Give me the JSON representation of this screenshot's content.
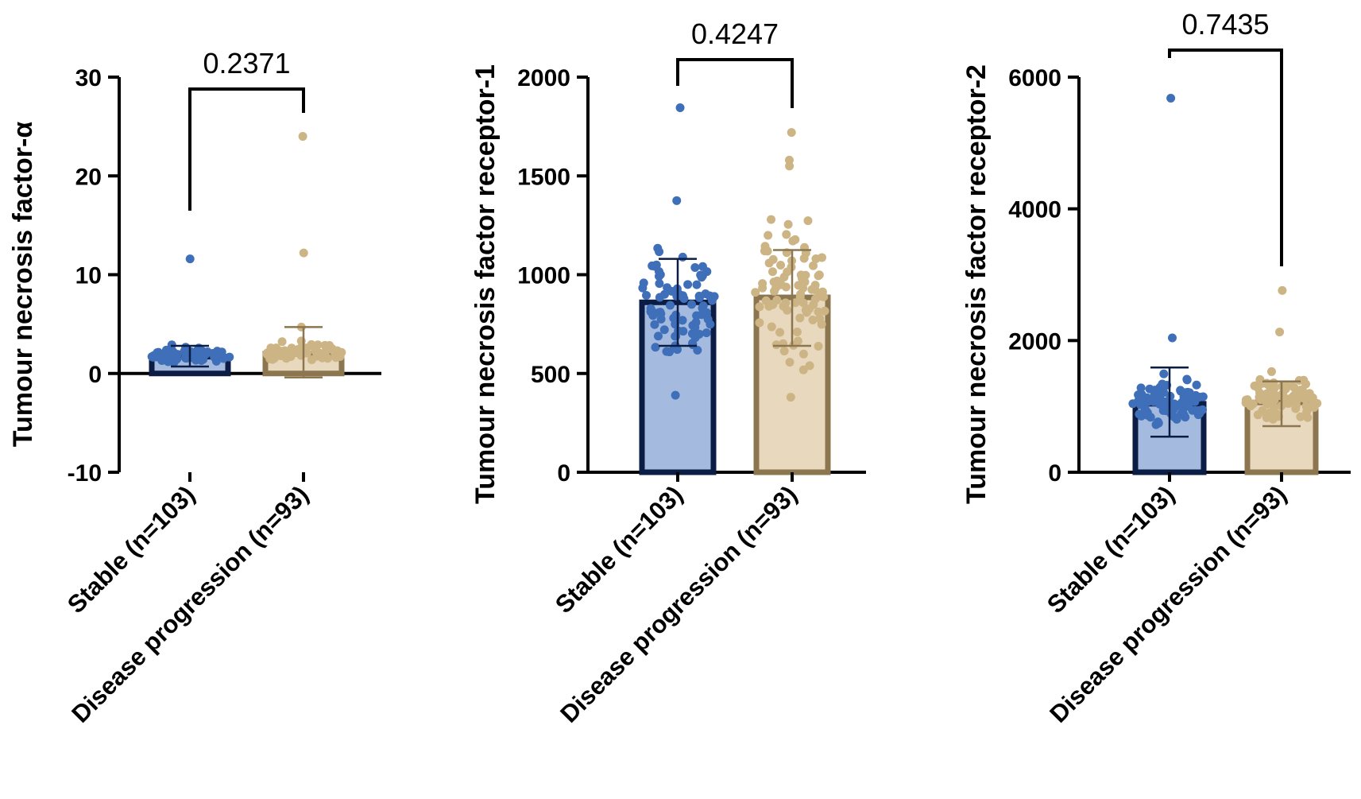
{
  "colors": {
    "stable_fill": "#a4bbdf",
    "stable_edge": "#0c1d45",
    "stable_dot": "#3e6fb8",
    "prog_fill": "#e8d8bd",
    "prog_edge": "#8c7650",
    "prog_dot": "#cdb485"
  },
  "chart_data": [
    {
      "type": "bar",
      "title": "",
      "ylabel": "Tumour necrosis factor-α",
      "ylim": [
        -10,
        30
      ],
      "yticks": [
        -10,
        0,
        10,
        20,
        30
      ],
      "ytick_labels": [
        "-10",
        "0",
        "10",
        "20",
        "30"
      ],
      "categories": [
        "Stable (n=103)",
        "Disease progression (n=93)"
      ],
      "means": [
        1.7,
        2.0
      ],
      "errors": [
        [
          0.7,
          2.8
        ],
        [
          -0.4,
          4.7
        ]
      ],
      "p_value": "0.2371",
      "outliers": [
        [
          11.6
        ],
        [
          24.0,
          12.2,
          4.7
        ]
      ],
      "cluster": [
        [
          0.7,
          3.0
        ],
        [
          0.8,
          3.5
        ]
      ]
    },
    {
      "type": "bar",
      "title": "",
      "ylabel": "Tumour necrosis factor receptor-1",
      "ylim": [
        0,
        2000
      ],
      "yticks": [
        0,
        500,
        1000,
        1500,
        2000
      ],
      "ytick_labels": [
        "0",
        "500",
        "1000",
        "1500",
        "2000"
      ],
      "categories": [
        "Stable (n=103)",
        "Disease progression (n=93)"
      ],
      "means": [
        860,
        885
      ],
      "errors": [
        [
          640,
          1080
        ],
        [
          640,
          1125
        ]
      ],
      "p_value": "0.4247",
      "outliers": [
        [
          1845,
          1375,
          390
        ],
        [
          1720,
          1580,
          1550,
          380
        ]
      ],
      "cluster": [
        [
          440,
          1260
        ],
        [
          430,
          1340
        ]
      ]
    },
    {
      "type": "bar",
      "title": "",
      "ylabel": "Tumour necrosis factor receptor-2",
      "ylim": [
        0,
        6000
      ],
      "yticks": [
        0,
        2000,
        4000,
        6000
      ],
      "ytick_labels": [
        "0",
        "2000",
        "4000",
        "6000"
      ],
      "categories": [
        "Stable (n=103)",
        "Disease progression (n=93)"
      ],
      "means": [
        1040,
        1060
      ],
      "errors": [
        [
          540,
          1590
        ],
        [
          700,
          1380
        ]
      ],
      "p_value": "0.7435",
      "outliers": [
        [
          5680,
          2040
        ],
        [
          2760,
          2130
        ]
      ],
      "cluster": [
        [
          560,
          1580
        ],
        [
          660,
          1560
        ]
      ]
    }
  ]
}
